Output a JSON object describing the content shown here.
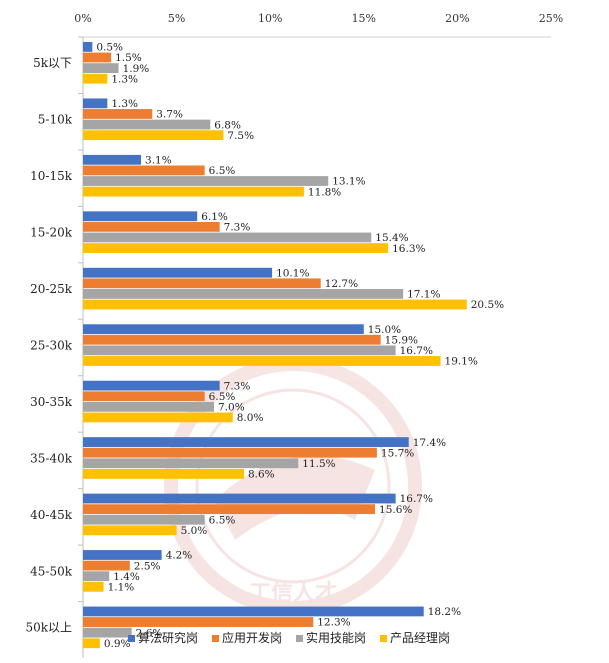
{
  "chart_data": {
    "type": "bar",
    "orientation": "horizontal",
    "title": "",
    "xlabel": "",
    "ylabel": "",
    "xlim": [
      0,
      25
    ],
    "x_ticks": [
      0,
      5,
      10,
      15,
      20,
      25
    ],
    "x_tick_labels": [
      "0%",
      "5%",
      "10%",
      "15%",
      "20%",
      "25%"
    ],
    "value_suffix": "%",
    "legend_position": "bottom-right",
    "categories": [
      "5k以下",
      "5-10k",
      "10-15k",
      "15-20k",
      "20-25k",
      "25-30k",
      "30-35k",
      "35-40k",
      "40-45k",
      "45-50k",
      "50k以上"
    ],
    "series": [
      {
        "name": "算法研究岗",
        "color": "#4472C4",
        "values": [
          0.5,
          1.3,
          3.1,
          6.1,
          10.1,
          15.0,
          7.3,
          17.4,
          16.7,
          4.2,
          18.2
        ]
      },
      {
        "name": "应用开发岗",
        "color": "#ED7D31",
        "values": [
          1.5,
          3.7,
          6.5,
          7.3,
          12.7,
          15.9,
          6.5,
          15.7,
          15.6,
          2.5,
          12.3
        ]
      },
      {
        "name": "实用技能岗",
        "color": "#A5A5A5",
        "values": [
          1.9,
          6.8,
          13.1,
          15.4,
          17.1,
          16.7,
          7.0,
          11.5,
          6.5,
          1.4,
          2.6
        ]
      },
      {
        "name": "产品经理岗",
        "color": "#FFC000",
        "values": [
          1.3,
          7.5,
          11.8,
          16.3,
          20.5,
          19.1,
          8.0,
          8.6,
          5.0,
          1.1,
          0.9
        ]
      }
    ],
    "watermark": "工信人才"
  }
}
